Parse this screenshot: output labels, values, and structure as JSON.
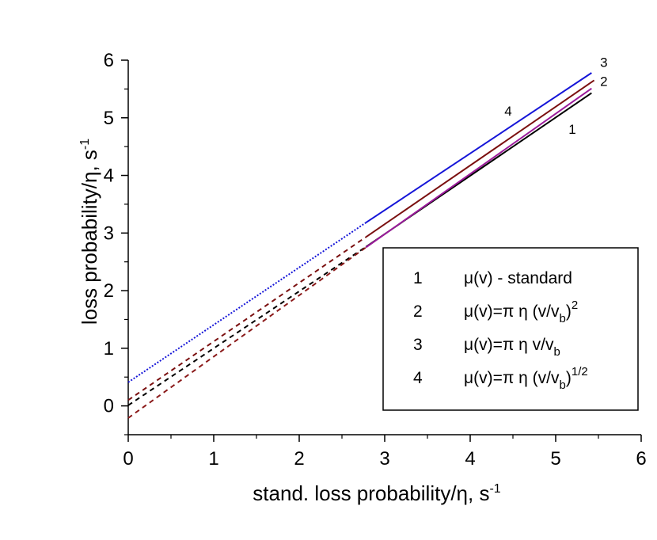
{
  "chart_data": {
    "type": "line",
    "title": "",
    "xlabel": "stand. loss probability/η, s",
    "xlabel_sup": "-1",
    "ylabel": "loss probability/η, s",
    "ylabel_sup": "-1",
    "xlim": [
      0,
      6
    ],
    "ylim": [
      -0.5,
      6
    ],
    "xticks": [
      "0",
      "1",
      "2",
      "3",
      "4",
      "5",
      "6"
    ],
    "yticks": [
      "0",
      "1",
      "2",
      "3",
      "4",
      "5",
      "6"
    ],
    "legend": {
      "position": "bottom-right",
      "entries": [
        {
          "num": "1",
          "parts": [
            {
              "t": "μ(v) - standard"
            }
          ]
        },
        {
          "num": "2",
          "parts": [
            {
              "t": "μ(v)=π η (v/v"
            },
            {
              "t": "b",
              "sub": true
            },
            {
              "t": ")"
            },
            {
              "t": "2",
              "sup": true
            }
          ]
        },
        {
          "num": "3",
          "parts": [
            {
              "t": "μ(v)=π η v/v"
            },
            {
              "t": "b",
              "sub": true
            }
          ]
        },
        {
          "num": "4",
          "parts": [
            {
              "t": "μ(v)=π η (v/v"
            },
            {
              "t": "b",
              "sub": true
            },
            {
              "t": ")"
            },
            {
              "t": "1/2",
              "sup": true
            }
          ]
        }
      ]
    },
    "series": [
      {
        "name": "1",
        "color": "#000000",
        "solid": [
          [
            2.78,
            2.76
          ],
          [
            5.42,
            5.43
          ]
        ],
        "dashed": [
          [
            0,
            0.01
          ],
          [
            2.78,
            2.76
          ]
        ],
        "dash_color": "#000000",
        "dash": "6,5"
      },
      {
        "name": "2",
        "color": "#7b1010",
        "solid": [
          [
            2.78,
            2.93
          ],
          [
            5.45,
            5.65
          ]
        ],
        "dashed": [
          [
            0,
            0.1
          ],
          [
            2.78,
            2.93
          ]
        ],
        "dash_color": "#7b1010",
        "dash": "6,5"
      },
      {
        "name": "3",
        "color": "#1515d8",
        "solid": [
          [
            2.78,
            3.18
          ],
          [
            5.42,
            5.78
          ]
        ],
        "dashed": [
          [
            0,
            0.41
          ],
          [
            2.78,
            3.18
          ]
        ],
        "dash_color": "#1515d8",
        "dash": "2,2"
      },
      {
        "name": "4",
        "color": "#9b1b9b",
        "solid": [
          [
            2.78,
            2.75
          ],
          [
            5.42,
            5.51
          ]
        ],
        "dashed": [
          [
            0,
            -0.21
          ],
          [
            2.78,
            2.75
          ]
        ],
        "dash_color": "#8b1a1a",
        "dash": "6,5"
      }
    ],
    "curve_labels": [
      {
        "text": "3",
        "x": 5.52,
        "y": 5.88
      },
      {
        "text": "2",
        "x": 5.52,
        "y": 5.55
      },
      {
        "text": "4",
        "x": 4.4,
        "y": 5.04
      },
      {
        "text": "1",
        "x": 5.15,
        "y": 4.72
      }
    ]
  }
}
